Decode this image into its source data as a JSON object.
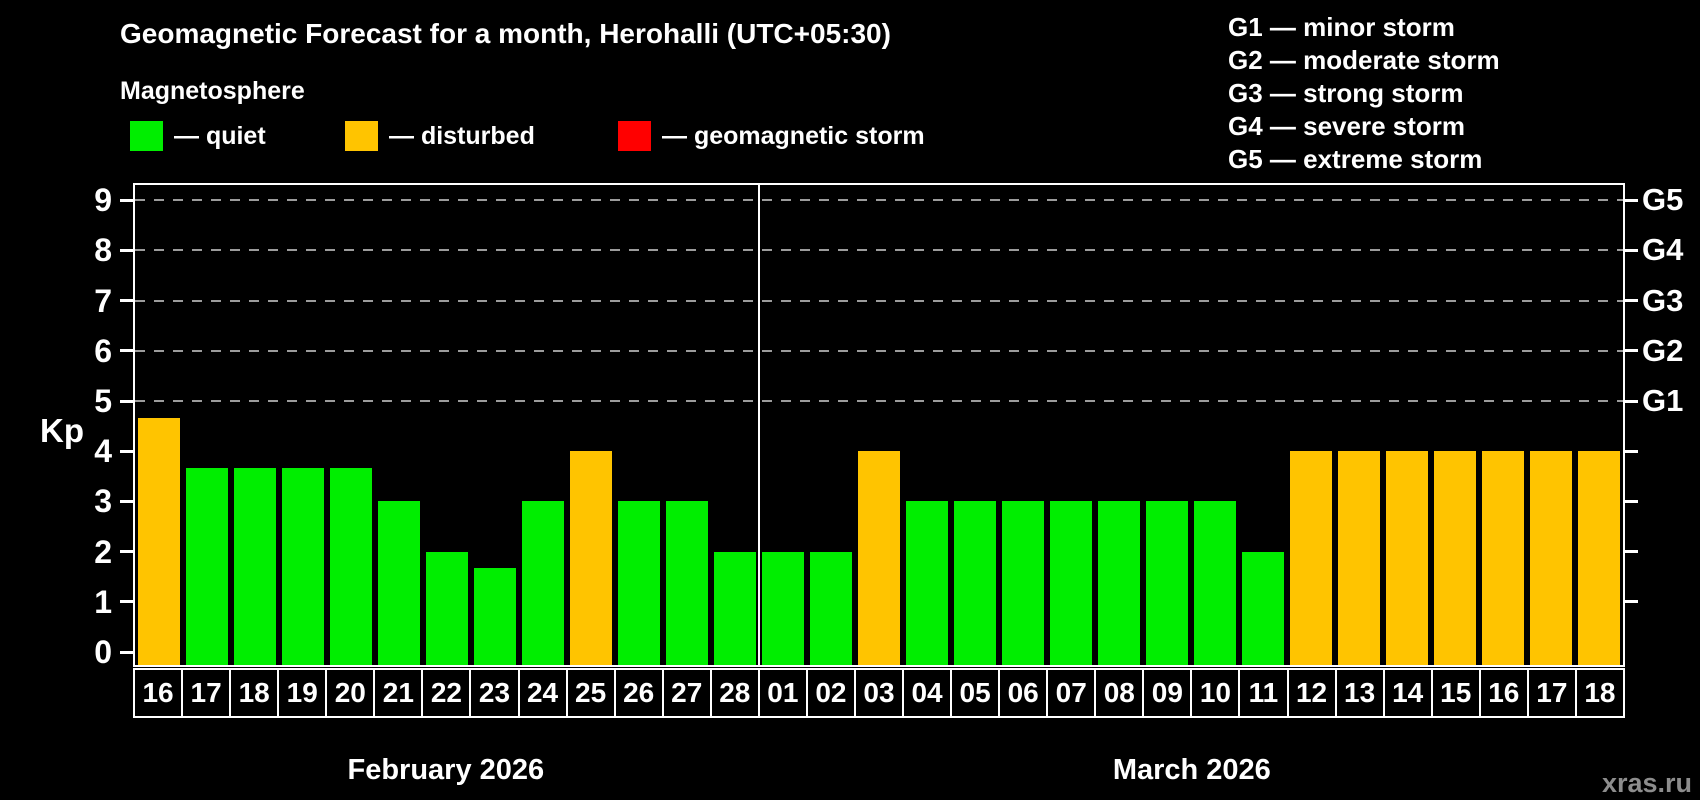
{
  "header": {
    "title": "Geomagnetic Forecast for a month, Herohalli (UTC+05:30)",
    "subtitle": "Magnetosphere"
  },
  "legend": {
    "items": [
      {
        "label": "— quiet",
        "status": "quiet"
      },
      {
        "label": "— disturbed",
        "status": "disturbed"
      },
      {
        "label": "— geomagnetic storm",
        "status": "storm"
      }
    ]
  },
  "storm_legend": [
    "G1 — minor storm",
    "G2 — moderate storm",
    "G3 — strong storm",
    "G4 — severe storm",
    "G5 — extreme storm"
  ],
  "watermark": "xras.ru",
  "chart_data": {
    "type": "bar",
    "ylabel": "Kp",
    "ylim": [
      0,
      9.3
    ],
    "yticks": [
      0,
      1,
      2,
      3,
      4,
      5,
      6,
      7,
      8,
      9
    ],
    "gridlines_at": [
      5,
      6,
      7,
      8,
      9
    ],
    "grid": "dashed horizontal at storm levels only",
    "legend_position": "top",
    "right_axis": [
      {
        "label": "G5",
        "kp": 9
      },
      {
        "label": "G4",
        "kp": 8
      },
      {
        "label": "G3",
        "kp": 7
      },
      {
        "label": "G2",
        "kp": 6
      },
      {
        "label": "G1",
        "kp": 5
      }
    ],
    "color_map": {
      "quiet": "#00EE00",
      "disturbed": "#FFC400",
      "storm": "#FF0000"
    },
    "months": [
      {
        "label": "February 2026",
        "days": [
          {
            "day": "16",
            "kp": 4.67,
            "status": "disturbed"
          },
          {
            "day": "17",
            "kp": 3.67,
            "status": "quiet"
          },
          {
            "day": "18",
            "kp": 3.67,
            "status": "quiet"
          },
          {
            "day": "19",
            "kp": 3.67,
            "status": "quiet"
          },
          {
            "day": "20",
            "kp": 3.67,
            "status": "quiet"
          },
          {
            "day": "21",
            "kp": 3,
            "status": "quiet"
          },
          {
            "day": "22",
            "kp": 2,
            "status": "quiet"
          },
          {
            "day": "23",
            "kp": 1.67,
            "status": "quiet"
          },
          {
            "day": "24",
            "kp": 3,
            "status": "quiet"
          },
          {
            "day": "25",
            "kp": 4,
            "status": "disturbed"
          },
          {
            "day": "26",
            "kp": 3,
            "status": "quiet"
          },
          {
            "day": "27",
            "kp": 3,
            "status": "quiet"
          },
          {
            "day": "28",
            "kp": 2,
            "status": "quiet"
          }
        ]
      },
      {
        "label": "March 2026",
        "days": [
          {
            "day": "01",
            "kp": 2,
            "status": "quiet"
          },
          {
            "day": "02",
            "kp": 2,
            "status": "quiet"
          },
          {
            "day": "03",
            "kp": 4,
            "status": "disturbed"
          },
          {
            "day": "04",
            "kp": 3,
            "status": "quiet"
          },
          {
            "day": "05",
            "kp": 3,
            "status": "quiet"
          },
          {
            "day": "06",
            "kp": 3,
            "status": "quiet"
          },
          {
            "day": "07",
            "kp": 3,
            "status": "quiet"
          },
          {
            "day": "08",
            "kp": 3,
            "status": "quiet"
          },
          {
            "day": "09",
            "kp": 3,
            "status": "quiet"
          },
          {
            "day": "10",
            "kp": 3,
            "status": "quiet"
          },
          {
            "day": "11",
            "kp": 2,
            "status": "quiet"
          },
          {
            "day": "12",
            "kp": 4,
            "status": "disturbed"
          },
          {
            "day": "13",
            "kp": 4,
            "status": "disturbed"
          },
          {
            "day": "14",
            "kp": 4,
            "status": "disturbed"
          },
          {
            "day": "15",
            "kp": 4,
            "status": "disturbed"
          },
          {
            "day": "16",
            "kp": 4,
            "status": "disturbed"
          },
          {
            "day": "17",
            "kp": 4,
            "status": "disturbed"
          },
          {
            "day": "18",
            "kp": 4,
            "status": "disturbed"
          }
        ]
      }
    ]
  }
}
